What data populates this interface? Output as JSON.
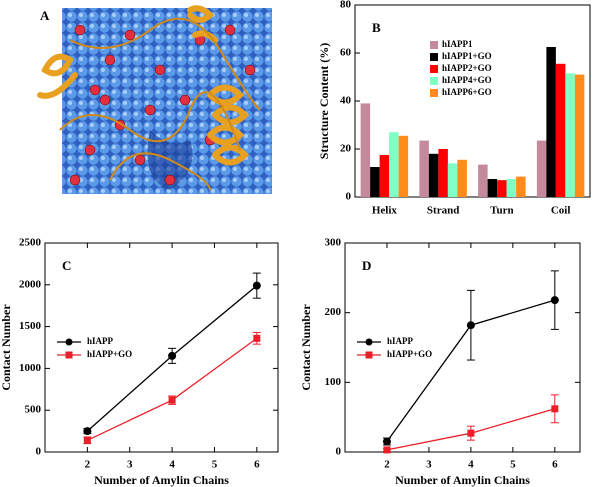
{
  "panel_a": {
    "label": "A"
  },
  "chart_data": [
    {
      "type": "bar",
      "panel_label": "B",
      "ylabel": "Structure Content (%)",
      "categories": [
        "Helix",
        "Strand",
        "Turn",
        "Coil"
      ],
      "ylim": [
        0,
        80
      ],
      "yticks": [
        0,
        20,
        40,
        60,
        80
      ],
      "legend": "upper center",
      "series": [
        {
          "name": "hIAPP1",
          "color": "#c48a9b",
          "values": [
            39,
            23.5,
            13.5,
            23.5
          ]
        },
        {
          "name": "hIAPP1+GO",
          "color": "#000000",
          "values": [
            12.5,
            18,
            7.5,
            62.5
          ]
        },
        {
          "name": "hIAPP2+GO",
          "color": "#ff0000",
          "values": [
            17.5,
            20,
            7,
            55.5
          ]
        },
        {
          "name": "hIAPP4+GO",
          "color": "#7fffc4",
          "values": [
            27,
            14,
            7.5,
            51.5
          ]
        },
        {
          "name": "hIAPP6+GO",
          "color": "#ff8c1a",
          "values": [
            25.5,
            15.5,
            8.5,
            51
          ]
        }
      ]
    },
    {
      "type": "line",
      "panel_label": "C",
      "xlabel": "Number of Amylin Chains",
      "ylabel": "Contact Number",
      "x": [
        2,
        4,
        6
      ],
      "xlim": [
        1,
        6.5
      ],
      "xticks": [
        2,
        3,
        4,
        5,
        6
      ],
      "ylim": [
        0,
        2500
      ],
      "yticks": [
        0,
        500,
        1000,
        1500,
        2000,
        2500
      ],
      "legend": "center left",
      "series": [
        {
          "name": "hIAPP",
          "color": "#000000",
          "marker": "circle",
          "values": [
            250,
            1150,
            1990
          ],
          "errors": [
            30,
            90,
            150
          ]
        },
        {
          "name": "hIAPP+GO",
          "color": "#e8202a",
          "marker": "square",
          "values": [
            140,
            620,
            1360
          ],
          "errors": [
            40,
            50,
            70
          ]
        }
      ]
    },
    {
      "type": "line",
      "panel_label": "D",
      "xlabel": "Number of Amylin Chains",
      "ylabel": "Contact Number",
      "x": [
        2,
        4,
        6
      ],
      "xlim": [
        1,
        6.6
      ],
      "xticks": [
        2,
        3,
        4,
        5,
        6
      ],
      "ylim": [
        0,
        300
      ],
      "yticks": [
        0,
        100,
        200,
        300
      ],
      "legend": "center left",
      "series": [
        {
          "name": "hIAPP",
          "color": "#000000",
          "marker": "circle",
          "values": [
            15,
            182,
            218
          ],
          "errors": [
            5,
            50,
            42
          ]
        },
        {
          "name": "hIAPP+GO",
          "color": "#e8202a",
          "marker": "square",
          "values": [
            3,
            27,
            62
          ],
          "errors": [
            2,
            10,
            20
          ]
        }
      ]
    }
  ]
}
